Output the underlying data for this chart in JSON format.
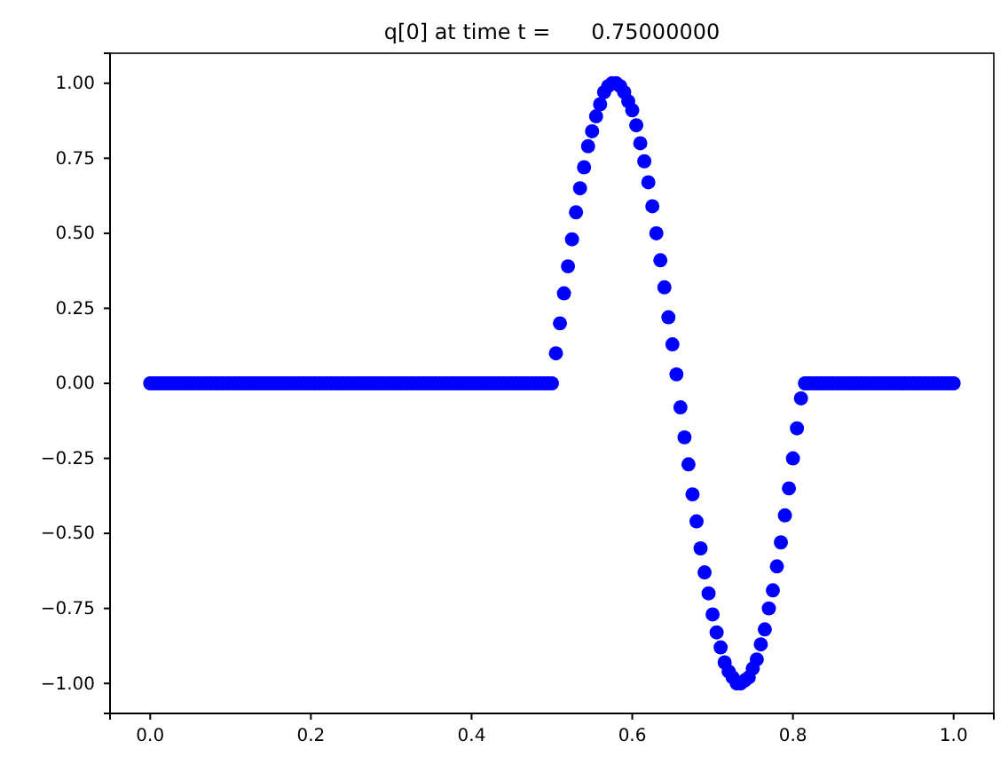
{
  "chart_data": {
    "type": "scatter",
    "title": "q[0] at time t =      0.75000000",
    "xlim": [
      -0.05,
      1.05
    ],
    "ylim": [
      -1.1,
      1.1
    ],
    "xticks": [
      {
        "value": 0,
        "label": "0.0"
      },
      {
        "value": 0.2,
        "label": "0.2"
      },
      {
        "value": 0.4,
        "label": "0.4"
      },
      {
        "value": 0.6,
        "label": "0.6"
      },
      {
        "value": 0.8,
        "label": "0.8"
      },
      {
        "value": 1,
        "label": "1.0"
      }
    ],
    "yticks": [
      {
        "value": -1,
        "label": "−1.00"
      },
      {
        "value": -0.75,
        "label": "−0.75"
      },
      {
        "value": -0.5,
        "label": "−0.50"
      },
      {
        "value": -0.25,
        "label": "−0.25"
      },
      {
        "value": 0,
        "label": "0.00"
      },
      {
        "value": 0.25,
        "label": "0.25"
      },
      {
        "value": 0.5,
        "label": "0.50"
      },
      {
        "value": 0.75,
        "label": "0.75"
      },
      {
        "value": 1,
        "label": "1.00"
      }
    ],
    "marker": "circle",
    "grid": false,
    "series": [
      {
        "color": "#0000ff",
        "x": [
          0,
          0.005,
          0.01,
          0.015,
          0.02,
          0.025,
          0.03,
          0.035,
          0.04,
          0.045,
          0.05,
          0.055,
          0.06,
          0.065,
          0.07,
          0.075,
          0.08,
          0.085,
          0.09,
          0.095,
          0.1,
          0.105,
          0.11,
          0.115,
          0.12,
          0.125,
          0.13,
          0.135,
          0.14,
          0.145,
          0.15,
          0.155,
          0.16,
          0.165,
          0.17,
          0.175,
          0.18,
          0.185,
          0.19,
          0.195,
          0.2,
          0.205,
          0.21,
          0.215,
          0.22,
          0.225,
          0.23,
          0.235,
          0.24,
          0.245,
          0.25,
          0.255,
          0.26,
          0.265,
          0.27,
          0.275,
          0.28,
          0.285,
          0.29,
          0.295,
          0.3,
          0.305,
          0.31,
          0.315,
          0.32,
          0.325,
          0.33,
          0.335,
          0.34,
          0.345,
          0.35,
          0.355,
          0.36,
          0.365,
          0.37,
          0.375,
          0.38,
          0.385,
          0.39,
          0.395,
          0.4,
          0.405,
          0.41,
          0.415,
          0.42,
          0.425,
          0.43,
          0.435,
          0.44,
          0.445,
          0.45,
          0.455,
          0.46,
          0.465,
          0.47,
          0.475,
          0.48,
          0.485,
          0.49,
          0.495,
          0.5,
          0.505,
          0.51,
          0.515,
          0.52,
          0.525,
          0.53,
          0.535,
          0.54,
          0.545,
          0.55,
          0.555,
          0.56,
          0.565,
          0.57,
          0.575,
          0.58,
          0.585,
          0.59,
          0.595,
          0.6,
          0.605,
          0.61,
          0.615,
          0.62,
          0.625,
          0.63,
          0.635,
          0.64,
          0.645,
          0.65,
          0.655,
          0.66,
          0.665,
          0.67,
          0.675,
          0.68,
          0.685,
          0.69,
          0.695,
          0.7,
          0.705,
          0.71,
          0.715,
          0.72,
          0.725,
          0.73,
          0.735,
          0.74,
          0.745,
          0.75,
          0.755,
          0.76,
          0.765,
          0.77,
          0.775,
          0.78,
          0.785,
          0.79,
          0.795,
          0.8,
          0.805,
          0.81,
          0.815,
          0.82,
          0.825,
          0.83,
          0.835,
          0.84,
          0.845,
          0.85,
          0.855,
          0.86,
          0.865,
          0.87,
          0.875,
          0.88,
          0.885,
          0.89,
          0.895,
          0.9,
          0.905,
          0.91,
          0.915,
          0.92,
          0.925,
          0.93,
          0.935,
          0.94,
          0.945,
          0.95,
          0.955,
          0.96,
          0.965,
          0.97,
          0.975,
          0.98,
          0.985,
          0.99,
          0.995,
          1
        ],
        "values": [
          0,
          0,
          0,
          0,
          0,
          0,
          0,
          0,
          0,
          0,
          0,
          0,
          0,
          0,
          0,
          0,
          0,
          0,
          0,
          0,
          0,
          0,
          0,
          0,
          0,
          0,
          0,
          0,
          0,
          0,
          0,
          0,
          0,
          0,
          0,
          0,
          0,
          0,
          0,
          0,
          0,
          0,
          0,
          0,
          0,
          0,
          0,
          0,
          0,
          0,
          0,
          0,
          0,
          0,
          0,
          0,
          0,
          0,
          0,
          0,
          0,
          0,
          0,
          0,
          0,
          0,
          0,
          0,
          0,
          0,
          0,
          0,
          0,
          0,
          0,
          0,
          0,
          0,
          0,
          0,
          0,
          0,
          0,
          0,
          0,
          0,
          0,
          0,
          0,
          0,
          0,
          0,
          0,
          0,
          0,
          0,
          0,
          0,
          0,
          0,
          0,
          0.1,
          0.2,
          0.3,
          0.39,
          0.48,
          0.57,
          0.65,
          0.72,
          0.79,
          0.84,
          0.89,
          0.93,
          0.97,
          0.99,
          1,
          1,
          0.99,
          0.97,
          0.94,
          0.91,
          0.86,
          0.8,
          0.74,
          0.67,
          0.59,
          0.5,
          0.41,
          0.32,
          0.22,
          0.13,
          0.03,
          -0.08,
          -0.18,
          -0.27,
          -0.37,
          -0.46,
          -0.55,
          -0.63,
          -0.7,
          -0.77,
          -0.83,
          -0.88,
          -0.93,
          -0.96,
          -0.98,
          -1,
          -1,
          -0.99,
          -0.98,
          -0.95,
          -0.92,
          -0.87,
          -0.82,
          -0.75,
          -0.69,
          -0.61,
          -0.53,
          -0.44,
          -0.35,
          -0.25,
          -0.15,
          -0.05,
          0,
          0,
          0,
          0,
          0,
          0,
          0,
          0,
          0,
          0,
          0,
          0,
          0,
          0,
          0,
          0,
          0,
          0,
          0,
          0,
          0,
          0,
          0,
          0,
          0,
          0,
          0,
          0,
          0,
          0,
          0,
          0,
          0,
          0,
          0,
          0,
          0,
          0
        ]
      }
    ]
  }
}
